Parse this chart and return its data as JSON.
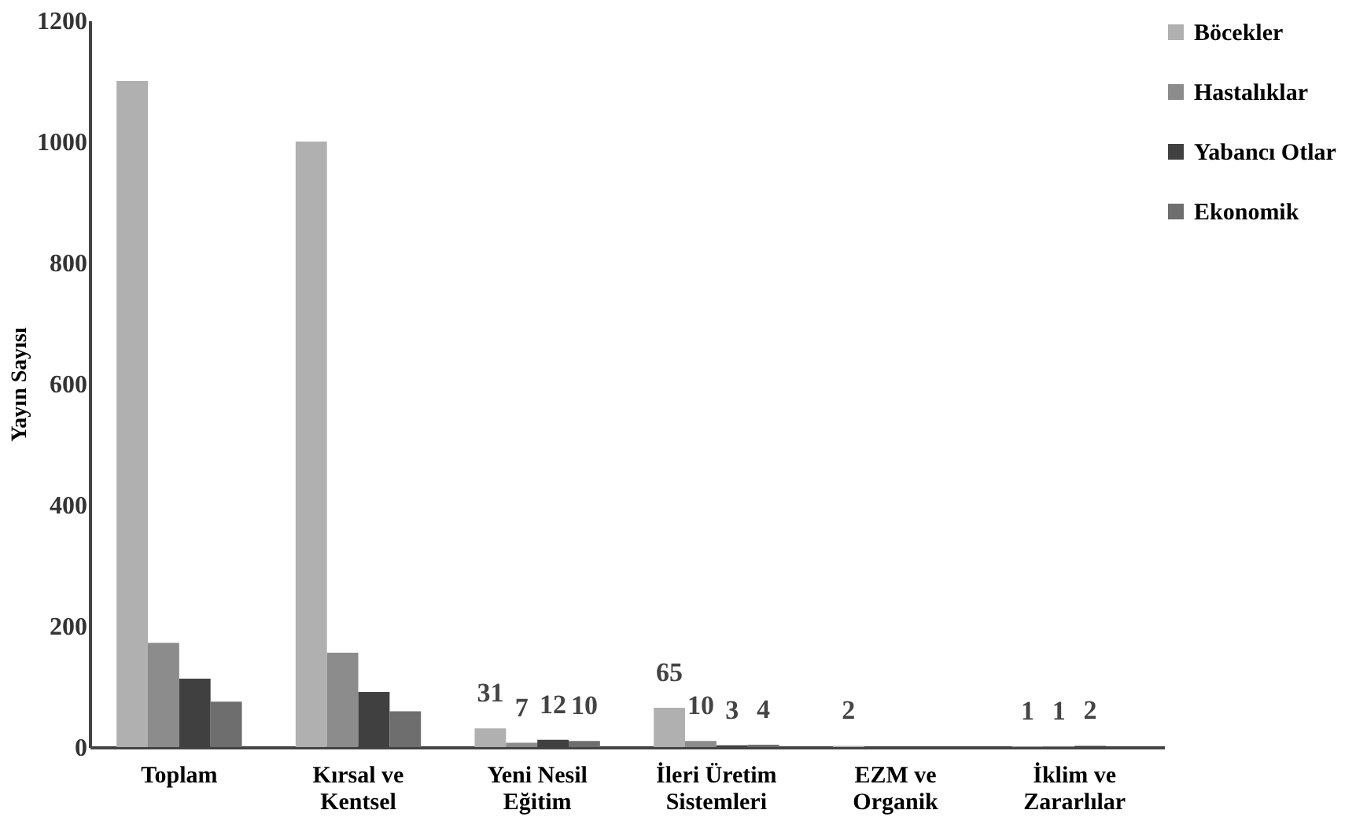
{
  "chart_data": {
    "type": "bar",
    "ylabel": "Yayın Sayısı",
    "categories": [
      "Toplam",
      "Kırsal ve Kentsel",
      "Yeni Nesil Eğitim",
      "İleri Üretim Sistemleri",
      "EZM ve Organik",
      "İklim ve Zararlılar"
    ],
    "series": [
      {
        "name": "Böcekler",
        "color": "#b0b0b0",
        "values": [
          1100,
          1000,
          31,
          65,
          2,
          1
        ],
        "value_labels": [
          null,
          null,
          "31",
          "65",
          "2",
          "1"
        ]
      },
      {
        "name": "Hastalıklar",
        "color": "#8c8c8c",
        "values": [
          172,
          156,
          7,
          10,
          null,
          1
        ],
        "value_labels": [
          null,
          null,
          "7",
          "10",
          null,
          "1"
        ]
      },
      {
        "name": "Yabancı Otlar",
        "color": "#404040",
        "values": [
          113,
          91,
          12,
          3,
          null,
          2
        ],
        "value_labels": [
          null,
          null,
          "12",
          "3",
          null,
          "2"
        ]
      },
      {
        "name": "Ekonomik",
        "color": "#6e6e6e",
        "values": [
          75,
          59,
          10,
          4,
          null,
          null
        ],
        "value_labels": [
          null,
          null,
          "10",
          "4",
          null,
          null
        ]
      }
    ],
    "ylim": [
      0,
      1200
    ],
    "yticks": [
      0,
      200,
      400,
      600,
      800,
      1000,
      1200
    ],
    "grid": false,
    "legend": "right"
  }
}
